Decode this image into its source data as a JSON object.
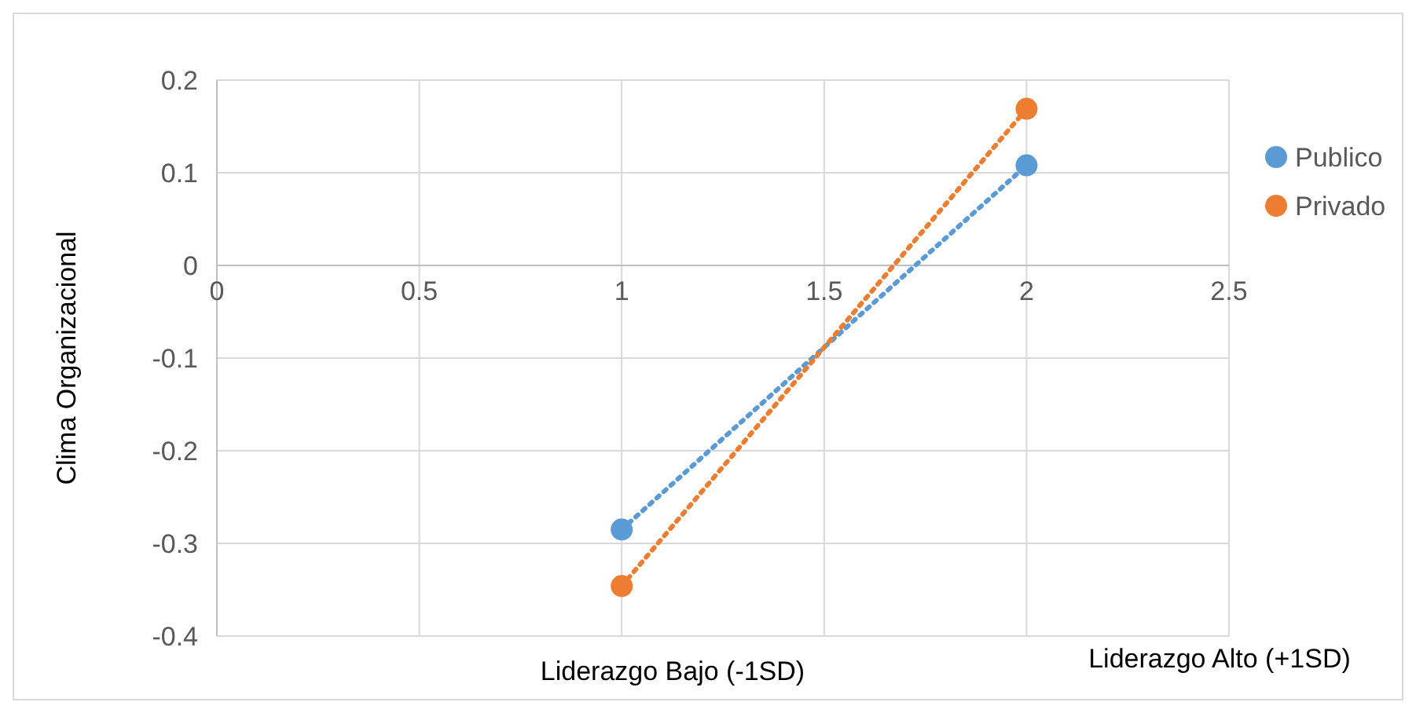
{
  "chart_data": {
    "type": "line",
    "ylabel": "Clima Organizacional",
    "annotations": [
      "Liderazgo Bajo (-1SD)",
      "Liderazgo Alto (+1SD)"
    ],
    "series": [
      {
        "name": "Publico",
        "color": "#5b9bd5",
        "values": [
          -0.285,
          0.108
        ]
      },
      {
        "name": "Privado",
        "color": "#ed7d31",
        "values": [
          -0.346,
          0.169
        ]
      }
    ],
    "x": [
      1,
      2
    ],
    "xlim": [
      0,
      2.5
    ],
    "xticks": [
      0,
      0.5,
      1,
      1.5,
      2,
      2.5
    ],
    "ylim": [
      -0.4,
      0.2
    ],
    "yticks": [
      -0.4,
      -0.3,
      -0.2,
      -0.1,
      0,
      0.1,
      0.2
    ],
    "grid": true,
    "legend": "right",
    "marker": "circle",
    "line_style": "dotted"
  }
}
